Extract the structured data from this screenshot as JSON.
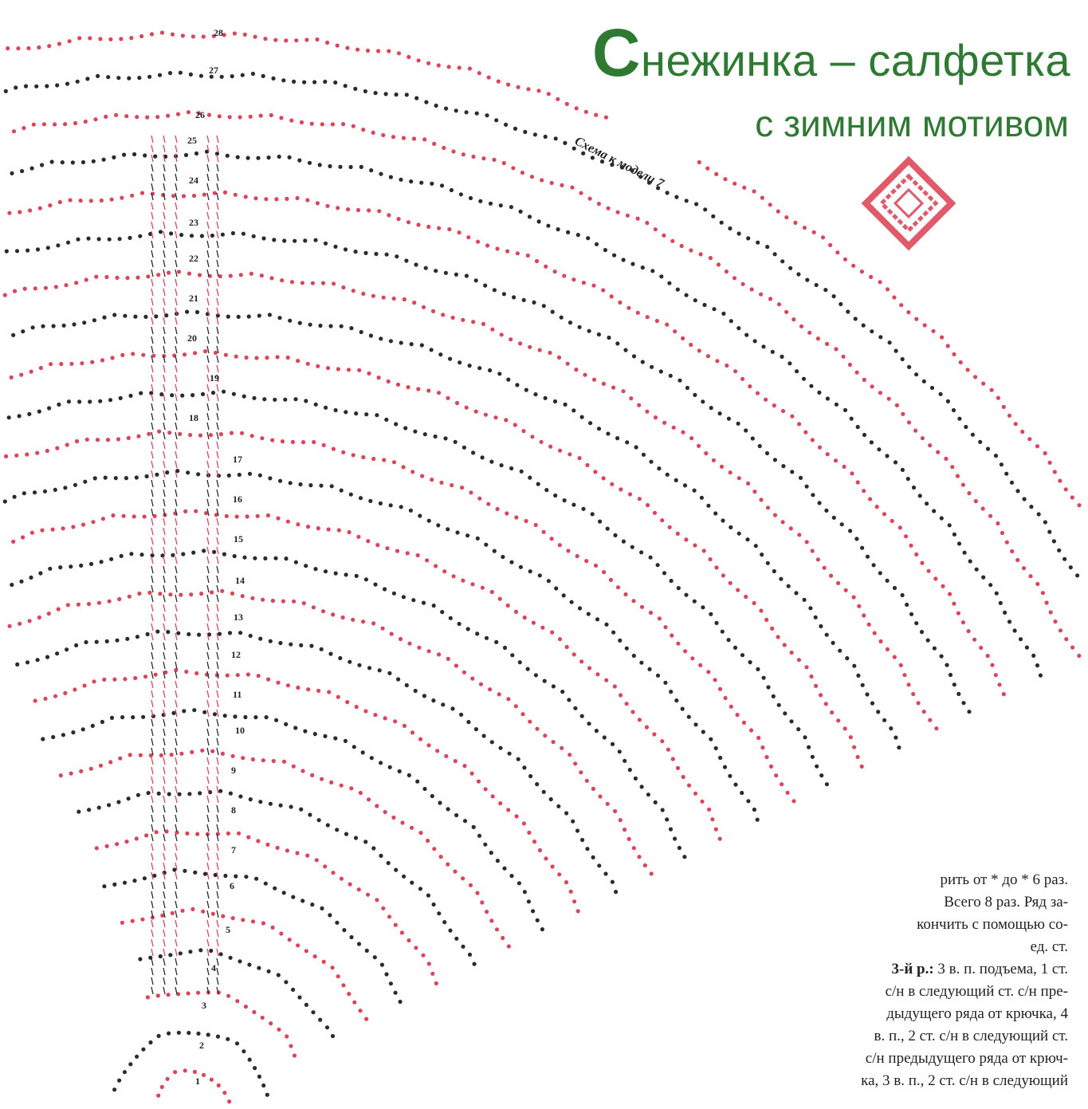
{
  "header": {
    "title": "Снежинка – салфетка",
    "subtitle": "с зимним мотивом"
  },
  "diagram": {
    "caption": "Схема к модели 7",
    "row_numbers": [
      1,
      2,
      3,
      4,
      5,
      6,
      7,
      8,
      9,
      10,
      11,
      12,
      13,
      14,
      15,
      16,
      17,
      18,
      19,
      20,
      21,
      22,
      23,
      24,
      25,
      26,
      27,
      28
    ]
  },
  "text": {
    "lines": [
      "рить от * до * 6 раз.",
      "Всего 8 раз. Ряд за-",
      "кончить с помощью со-",
      "ед. ст."
    ],
    "row3_label": "3-й р.:",
    "row3_lines": [
      " 3 в. п. подъема, 1 ст.",
      "с/н в следующий ст. с/н пре-",
      "дыдущего ряда от крючка, 4",
      "в. п., 2 ст. с/н в следующий ст.",
      "с/н предыдущего ряда от крюч-",
      "ка, 3 в. п., 2 ст. с/н в следующий"
    ]
  }
}
